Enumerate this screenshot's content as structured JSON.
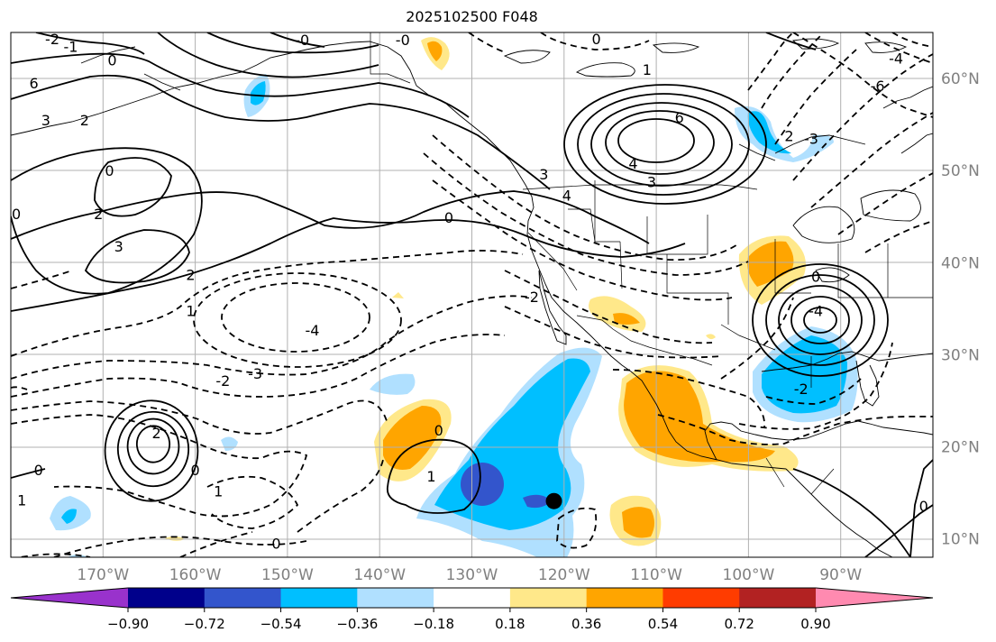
{
  "title": "2025102500 F048",
  "map": {
    "projection": "lat-lon",
    "extent": {
      "lon_min": -180,
      "lon_max": -80,
      "lat_min": 8,
      "lat_max": 65
    },
    "longitude_labels": [
      "170°W",
      "160°W",
      "150°W",
      "140°W",
      "130°W",
      "120°W",
      "110°W",
      "100°W",
      "90°W"
    ],
    "latitude_labels": [
      "60°N",
      "50°N",
      "40°N",
      "30°N",
      "20°N",
      "10°N"
    ],
    "gridlines": true,
    "label_color": "#808080",
    "contour_labels": [
      {
        "text": "6",
        "lon": -177.5,
        "lat": 59.5
      },
      {
        "text": "3",
        "lon": -176.2,
        "lat": 55.5
      },
      {
        "text": "2",
        "lon": -172,
        "lat": 55.5
      },
      {
        "text": "0",
        "lon": -169,
        "lat": 62
      },
      {
        "text": "0",
        "lon": -169.3,
        "lat": 50
      },
      {
        "text": "0",
        "lon": -179.4,
        "lat": 45.3
      },
      {
        "text": "2",
        "lon": -170.5,
        "lat": 45.3
      },
      {
        "text": "3",
        "lon": -168.3,
        "lat": 41.8
      },
      {
        "text": "2",
        "lon": -160.5,
        "lat": 38.7
      },
      {
        "text": "1",
        "lon": -160.5,
        "lat": 34.8
      },
      {
        "text": "-4",
        "lon": -147.3,
        "lat": 32.7
      },
      {
        "text": "-3",
        "lon": -153.5,
        "lat": 28
      },
      {
        "text": "-2",
        "lon": -157,
        "lat": 27.2
      },
      {
        "text": "2",
        "lon": -164.2,
        "lat": 21.5
      },
      {
        "text": "0",
        "lon": -177,
        "lat": 17.5
      },
      {
        "text": "1",
        "lon": -178.8,
        "lat": 14.2
      },
      {
        "text": "1",
        "lon": -157.5,
        "lat": 15.2
      },
      {
        "text": "0",
        "lon": -160,
        "lat": 17.5
      },
      {
        "text": "-0",
        "lon": -151.5,
        "lat": 9.5
      },
      {
        "text": "0",
        "lon": -133.6,
        "lat": 21.8
      },
      {
        "text": "1",
        "lon": -134.4,
        "lat": 16.8
      },
      {
        "text": "0",
        "lon": -132.5,
        "lat": 44.9
      },
      {
        "text": "-2",
        "lon": -123.5,
        "lat": 36.3
      },
      {
        "text": "3",
        "lon": -122.2,
        "lat": 49.6
      },
      {
        "text": "4",
        "lon": -119.7,
        "lat": 47.3
      },
      {
        "text": "4",
        "lon": -112.5,
        "lat": 50.8
      },
      {
        "text": "3",
        "lon": -110.5,
        "lat": 48.8
      },
      {
        "text": "6",
        "lon": -107.5,
        "lat": 55.8
      },
      {
        "text": "1",
        "lon": -111,
        "lat": 61
      },
      {
        "text": "0",
        "lon": -116.5,
        "lat": 64.3
      },
      {
        "text": "2",
        "lon": -95.6,
        "lat": 53.8
      },
      {
        "text": "-3",
        "lon": -93.2,
        "lat": 53.5
      },
      {
        "text": "-6",
        "lon": -86,
        "lat": 59.2
      },
      {
        "text": "-4",
        "lon": -84,
        "lat": 62.2
      },
      {
        "text": "0",
        "lon": -92.7,
        "lat": 38.5
      },
      {
        "text": "-4",
        "lon": -92.7,
        "lat": 34.8
      },
      {
        "text": "-2",
        "lon": -94.3,
        "lat": 26.3
      },
      {
        "text": "0",
        "lon": -81,
        "lat": 13.6
      },
      {
        "text": "-2",
        "lon": -175.5,
        "lat": 64.3
      },
      {
        "text": "-1",
        "lon": -173.5,
        "lat": 63.5
      },
      {
        "text": "-0",
        "lon": -148.4,
        "lat": 64.2
      },
      {
        "text": "-0",
        "lon": -137.5,
        "lat": 64.2
      }
    ],
    "marker": {
      "lon": -121.1,
      "lat": 14.1
    }
  },
  "colorbar": {
    "colors": [
      "#9932cc",
      "#00008b",
      "#3355cc",
      "#00bfff",
      "#b0e0ff",
      "#ffffff",
      "#ffe88a",
      "#ffa500",
      "#ff3c00",
      "#b22222",
      "#ff8ab0"
    ],
    "tick_labels": [
      "−0.90",
      "−0.72",
      "−0.54",
      "−0.36",
      "−0.18",
      "0.18",
      "0.36",
      "0.54",
      "0.72",
      "0.90"
    ]
  }
}
